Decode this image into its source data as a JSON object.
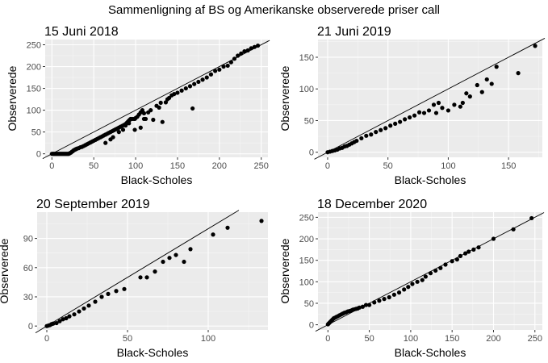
{
  "title": "Sammenligning af BS og Amerikanske observerede priser call",
  "colors": {
    "panel_bg": "#ebebeb",
    "grid_major": "#ffffff",
    "point": "#000000",
    "line": "#000000",
    "tick_text": "#4d4d4d"
  },
  "chart_data": [
    {
      "type": "scatter",
      "title": "15 Juni 2018",
      "xlabel": "Black-Scholes",
      "ylabel": "Observerede",
      "xlim": [
        -8,
        258
      ],
      "ylim": [
        -8,
        262
      ],
      "xticks": [
        0,
        50,
        100,
        150,
        200,
        250
      ],
      "yticks": [
        0,
        50,
        100,
        150,
        200,
        250
      ],
      "reference_line": "y = x",
      "points": [
        [
          0,
          0
        ],
        [
          1,
          0
        ],
        [
          2,
          0
        ],
        [
          3,
          0
        ],
        [
          4,
          0
        ],
        [
          5,
          0
        ],
        [
          6,
          0
        ],
        [
          7,
          0
        ],
        [
          8,
          0
        ],
        [
          9,
          0
        ],
        [
          10,
          0
        ],
        [
          11,
          0
        ],
        [
          12,
          0
        ],
        [
          13,
          0
        ],
        [
          14,
          0
        ],
        [
          15,
          0
        ],
        [
          16,
          0
        ],
        [
          17,
          0
        ],
        [
          18,
          0
        ],
        [
          19,
          0
        ],
        [
          20,
          0
        ],
        [
          21,
          1
        ],
        [
          22,
          2
        ],
        [
          23,
          3
        ],
        [
          24,
          5
        ],
        [
          25,
          6
        ],
        [
          26,
          8
        ],
        [
          27,
          9
        ],
        [
          28,
          10
        ],
        [
          29,
          11
        ],
        [
          30,
          12
        ],
        [
          32,
          13
        ],
        [
          34,
          15
        ],
        [
          36,
          16
        ],
        [
          38,
          18
        ],
        [
          40,
          20
        ],
        [
          42,
          22
        ],
        [
          44,
          24
        ],
        [
          46,
          26
        ],
        [
          48,
          28
        ],
        [
          50,
          30
        ],
        [
          52,
          32
        ],
        [
          54,
          34
        ],
        [
          56,
          36
        ],
        [
          58,
          38
        ],
        [
          60,
          40
        ],
        [
          62,
          42
        ],
        [
          64,
          44
        ],
        [
          66,
          46
        ],
        [
          68,
          48
        ],
        [
          70,
          50
        ],
        [
          72,
          52
        ],
        [
          74,
          54
        ],
        [
          76,
          56
        ],
        [
          78,
          58
        ],
        [
          80,
          60
        ],
        [
          82,
          62
        ],
        [
          84,
          64
        ],
        [
          86,
          66
        ],
        [
          88,
          68
        ],
        [
          89,
          70
        ],
        [
          90,
          72
        ],
        [
          91,
          74
        ],
        [
          92,
          76
        ],
        [
          93,
          78
        ],
        [
          94,
          80
        ],
        [
          96,
          80
        ],
        [
          98,
          80
        ],
        [
          99,
          80
        ],
        [
          100,
          82
        ],
        [
          102,
          85
        ],
        [
          104,
          90
        ],
        [
          106,
          95
        ],
        [
          108,
          100
        ],
        [
          110,
          80
        ],
        [
          112,
          80
        ],
        [
          64,
          25
        ],
        [
          70,
          33
        ],
        [
          73,
          38
        ],
        [
          80,
          50
        ],
        [
          85,
          55
        ],
        [
          88,
          65
        ],
        [
          92,
          70
        ],
        [
          99,
          55
        ],
        [
          106,
          60
        ],
        [
          110,
          93
        ],
        [
          115,
          95
        ],
        [
          118,
          100
        ],
        [
          121,
          78
        ],
        [
          125,
          110
        ],
        [
          128,
          106
        ],
        [
          130,
          117
        ],
        [
          132,
          73
        ],
        [
          136,
          118
        ],
        [
          138,
          125
        ],
        [
          140,
          128
        ],
        [
          143,
          134
        ],
        [
          146,
          137
        ],
        [
          150,
          140
        ],
        [
          155,
          145
        ],
        [
          160,
          150
        ],
        [
          165,
          155
        ],
        [
          168,
          104
        ],
        [
          170,
          160
        ],
        [
          175,
          165
        ],
        [
          180,
          170
        ],
        [
          185,
          175
        ],
        [
          190,
          182
        ],
        [
          195,
          190
        ],
        [
          200,
          193
        ],
        [
          205,
          200
        ],
        [
          210,
          202
        ],
        [
          214,
          210
        ],
        [
          218,
          218
        ],
        [
          222,
          225
        ],
        [
          226,
          230
        ],
        [
          230,
          235
        ],
        [
          234,
          237
        ],
        [
          238,
          242
        ],
        [
          242,
          245
        ],
        [
          246,
          248
        ]
      ]
    },
    {
      "type": "scatter",
      "title": "21 Juni 2019",
      "xlabel": "Black-Scholes",
      "ylabel": "Observerede",
      "xlim": [
        -8,
        178
      ],
      "ylim": [
        -8,
        178
      ],
      "xticks": [
        0,
        50,
        100,
        150
      ],
      "yticks": [
        0,
        50,
        100,
        150
      ],
      "reference_line": "y = x",
      "points": [
        [
          0,
          0
        ],
        [
          2,
          1
        ],
        [
          4,
          2
        ],
        [
          6,
          3
        ],
        [
          8,
          4
        ],
        [
          10,
          6
        ],
        [
          12,
          7
        ],
        [
          14,
          9
        ],
        [
          16,
          10
        ],
        [
          18,
          12
        ],
        [
          20,
          14
        ],
        [
          22,
          16
        ],
        [
          24,
          18
        ],
        [
          28,
          22
        ],
        [
          32,
          26
        ],
        [
          36,
          28
        ],
        [
          40,
          32
        ],
        [
          44,
          35
        ],
        [
          48,
          38
        ],
        [
          52,
          42
        ],
        [
          56,
          45
        ],
        [
          60,
          48
        ],
        [
          64,
          52
        ],
        [
          68,
          55
        ],
        [
          72,
          58
        ],
        [
          76,
          63
        ],
        [
          80,
          62
        ],
        [
          84,
          66
        ],
        [
          90,
          62
        ],
        [
          95,
          70
        ],
        [
          88,
          75
        ],
        [
          92,
          78
        ],
        [
          100,
          66
        ],
        [
          105,
          75
        ],
        [
          110,
          72
        ],
        [
          112,
          78
        ],
        [
          115,
          93
        ],
        [
          118,
          88
        ],
        [
          124,
          106
        ],
        [
          128,
          95
        ],
        [
          132,
          115
        ],
        [
          136,
          108
        ],
        [
          140,
          135
        ],
        [
          158,
          125
        ],
        [
          172,
          168
        ]
      ]
    },
    {
      "type": "scatter",
      "title": "20 September 2019",
      "xlabel": "Black-Scholes",
      "ylabel": "Observerede",
      "xlim": [
        -6,
        137
      ],
      "ylim": [
        -4,
        117
      ],
      "xticks": [
        0,
        50,
        100
      ],
      "yticks": [
        0,
        30,
        60,
        90
      ],
      "reference_line": "y = x",
      "points": [
        [
          0,
          0
        ],
        [
          1,
          0.5
        ],
        [
          2,
          1
        ],
        [
          3,
          2
        ],
        [
          4,
          2.5
        ],
        [
          6,
          3
        ],
        [
          8,
          5
        ],
        [
          10,
          7
        ],
        [
          12,
          8
        ],
        [
          14,
          10
        ],
        [
          17,
          12
        ],
        [
          20,
          15
        ],
        [
          23,
          18
        ],
        [
          26,
          21
        ],
        [
          30,
          25
        ],
        [
          34,
          30
        ],
        [
          38,
          33
        ],
        [
          43,
          36
        ],
        [
          48,
          38
        ],
        [
          58,
          50
        ],
        [
          62,
          50
        ],
        [
          67,
          56
        ],
        [
          72,
          66
        ],
        [
          76,
          70
        ],
        [
          80,
          73
        ],
        [
          85,
          66
        ],
        [
          89,
          79
        ],
        [
          103,
          94
        ],
        [
          112,
          101
        ],
        [
          133,
          108
        ]
      ]
    },
    {
      "type": "scatter",
      "title": "18 December 2020",
      "xlabel": "Black-Scholes",
      "ylabel": "Observerede",
      "xlim": [
        -12,
        259
      ],
      "ylim": [
        -12,
        262
      ],
      "xticks": [
        0,
        50,
        100,
        150,
        200,
        250
      ],
      "yticks": [
        0,
        50,
        100,
        150,
        200,
        250
      ],
      "reference_line": "y = x",
      "points": [
        [
          0,
          1
        ],
        [
          1,
          3
        ],
        [
          2,
          5
        ],
        [
          3,
          7
        ],
        [
          4,
          9
        ],
        [
          5,
          11
        ],
        [
          6,
          13
        ],
        [
          7,
          15
        ],
        [
          8,
          16
        ],
        [
          10,
          18
        ],
        [
          12,
          20
        ],
        [
          14,
          22
        ],
        [
          16,
          24
        ],
        [
          18,
          26
        ],
        [
          20,
          28
        ],
        [
          22,
          29
        ],
        [
          24,
          31
        ],
        [
          26,
          32
        ],
        [
          28,
          33
        ],
        [
          30,
          35
        ],
        [
          32,
          36
        ],
        [
          34,
          37
        ],
        [
          36,
          38
        ],
        [
          38,
          40
        ],
        [
          42,
          42
        ],
        [
          46,
          46
        ],
        [
          50,
          46
        ],
        [
          56,
          52
        ],
        [
          62,
          56
        ],
        [
          68,
          60
        ],
        [
          74,
          64
        ],
        [
          80,
          70
        ],
        [
          86,
          75
        ],
        [
          92,
          82
        ],
        [
          97,
          88
        ],
        [
          102,
          95
        ],
        [
          108,
          100
        ],
        [
          114,
          104
        ],
        [
          118,
          112
        ],
        [
          124,
          120
        ],
        [
          130,
          126
        ],
        [
          136,
          132
        ],
        [
          142,
          140
        ],
        [
          150,
          148
        ],
        [
          156,
          152
        ],
        [
          160,
          160
        ],
        [
          166,
          166
        ],
        [
          170,
          170
        ],
        [
          176,
          175
        ],
        [
          182,
          180
        ],
        [
          200,
          200
        ],
        [
          224,
          222
        ],
        [
          246,
          248
        ]
      ]
    }
  ]
}
